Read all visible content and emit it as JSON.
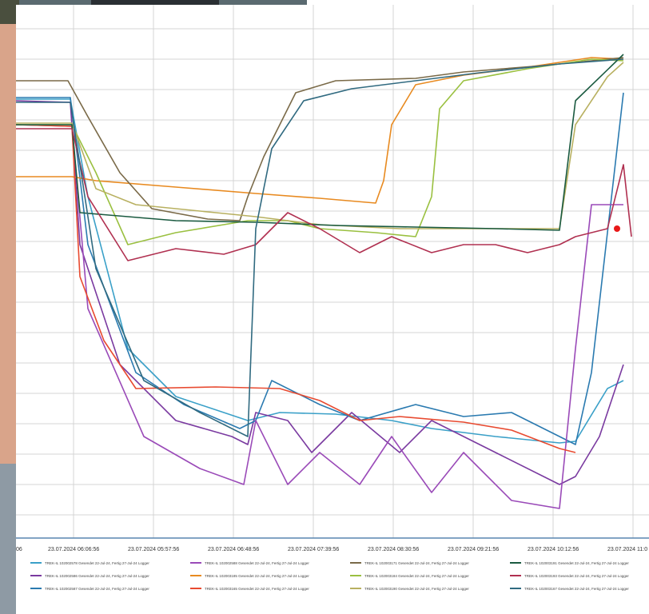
{
  "chart_data": {
    "type": "line",
    "title": "",
    "xlabel": "",
    "ylabel": "",
    "x_ticks": [
      "06",
      "23.07.2024 06:06:56",
      "23.07.2024 05:57:56",
      "23.07.2024 06:48:56",
      "23.07.2024 07:39:56",
      "23.07.2024 08:30:56",
      "23.07.2024 09:21:56",
      "23.07.2024 10:12:56",
      "23.07.2024 11:0"
    ],
    "grid": true,
    "legend_position": "bottom",
    "series": [
      {
        "name": "TREK-IL 102002578 Gesendet 22-Jul-24, Fertig 27-Jul-24 Logger",
        "color": "#3aa0c8",
        "values": [
          [
            0,
            118
          ],
          [
            68,
            118
          ],
          [
            90,
            240
          ],
          [
            140,
            430
          ],
          [
            200,
            490
          ],
          [
            290,
            520
          ],
          [
            330,
            510
          ],
          [
            400,
            512
          ],
          [
            470,
            520
          ],
          [
            520,
            530
          ],
          [
            600,
            540
          ],
          [
            680,
            548
          ],
          [
            700,
            546
          ],
          [
            740,
            480
          ],
          [
            760,
            470
          ]
        ]
      },
      {
        "name": "TREK-IL 102002586 Gesendet 22-Jul-24, Fertig 27-Jul-24 Logger",
        "color": "#7a3aa0",
        "values": [
          [
            0,
            120
          ],
          [
            68,
            122
          ],
          [
            80,
            300
          ],
          [
            130,
            450
          ],
          [
            200,
            520
          ],
          [
            270,
            540
          ],
          [
            290,
            550
          ],
          [
            300,
            510
          ],
          [
            340,
            520
          ],
          [
            370,
            560
          ],
          [
            420,
            510
          ],
          [
            480,
            560
          ],
          [
            520,
            520
          ],
          [
            600,
            560
          ],
          [
            680,
            600
          ],
          [
            700,
            590
          ],
          [
            730,
            540
          ],
          [
            760,
            450
          ]
        ]
      },
      {
        "name": "TREK-IL 102002587 Gesendet 22-Jul-24, Fertig 27-Jul-24 Logger",
        "color": "#2a7ab0",
        "values": [
          [
            0,
            116
          ],
          [
            68,
            116
          ],
          [
            90,
            300
          ],
          [
            150,
            460
          ],
          [
            210,
            500
          ],
          [
            280,
            530
          ],
          [
            300,
            520
          ],
          [
            320,
            470
          ],
          [
            380,
            500
          ],
          [
            430,
            520
          ],
          [
            500,
            500
          ],
          [
            560,
            515
          ],
          [
            620,
            510
          ],
          [
            680,
            540
          ],
          [
            700,
            550
          ],
          [
            720,
            460
          ],
          [
            760,
            110
          ]
        ]
      },
      {
        "name": "TREK-IL 102002588 Gesendet 22-Jul-24, Fertig 27-Jul-24 Logger",
        "color": "#9a4ab8",
        "values": [
          [
            0,
            150
          ],
          [
            70,
            152
          ],
          [
            90,
            380
          ],
          [
            160,
            540
          ],
          [
            230,
            580
          ],
          [
            285,
            600
          ],
          [
            300,
            520
          ],
          [
            340,
            600
          ],
          [
            380,
            560
          ],
          [
            430,
            600
          ],
          [
            470,
            540
          ],
          [
            520,
            610
          ],
          [
            560,
            560
          ],
          [
            620,
            620
          ],
          [
            680,
            630
          ],
          [
            700,
            430
          ],
          [
            720,
            250
          ],
          [
            760,
            250
          ]
        ]
      },
      {
        "name": "TREK-IL 102003185 Gesendet 22-Jul-24, Fertig 27-Jul-24 Logger",
        "color": "#e88a20",
        "values": [
          [
            0,
            215
          ],
          [
            70,
            215
          ],
          [
            100,
            220
          ],
          [
            200,
            228
          ],
          [
            300,
            236
          ],
          [
            380,
            242
          ],
          [
            450,
            248
          ],
          [
            460,
            220
          ],
          [
            470,
            150
          ],
          [
            500,
            100
          ],
          [
            560,
            88
          ],
          [
            640,
            78
          ],
          [
            720,
            66
          ],
          [
            760,
            68
          ]
        ]
      },
      {
        "name": "TREK-IL 102003165 Gesendet 22-Jul-24, Fertig 27-Jul-24 Logger",
        "color": "#e84a30",
        "values": [
          [
            0,
            150
          ],
          [
            70,
            152
          ],
          [
            80,
            340
          ],
          [
            110,
            420
          ],
          [
            150,
            480
          ],
          [
            250,
            478
          ],
          [
            330,
            480
          ],
          [
            380,
            495
          ],
          [
            430,
            520
          ],
          [
            480,
            515
          ],
          [
            560,
            522
          ],
          [
            620,
            532
          ],
          [
            680,
            555
          ],
          [
            700,
            560
          ]
        ]
      },
      {
        "name": "TREK-IL 102003171 Gesendet 22-Jul-24, Fertig 27-Jul-24 Logger",
        "color": "#7a6a48",
        "values": [
          [
            0,
            95
          ],
          [
            65,
            95
          ],
          [
            90,
            140
          ],
          [
            130,
            210
          ],
          [
            170,
            255
          ],
          [
            240,
            268
          ],
          [
            280,
            270
          ],
          [
            290,
            240
          ],
          [
            310,
            190
          ],
          [
            350,
            110
          ],
          [
            400,
            95
          ],
          [
            500,
            92
          ],
          [
            560,
            84
          ],
          [
            660,
            76
          ],
          [
            720,
            70
          ],
          [
            760,
            66
          ]
        ]
      },
      {
        "name": "TREK-IL 102003184 Gesendet 22-Jul-24, Fertig 27-Jul-24 Logger",
        "color": "#9ac040",
        "values": [
          [
            0,
            150
          ],
          [
            70,
            150
          ],
          [
            100,
            210
          ],
          [
            140,
            300
          ],
          [
            200,
            285
          ],
          [
            290,
            270
          ],
          [
            340,
            270
          ],
          [
            380,
            280
          ],
          [
            450,
            285
          ],
          [
            500,
            290
          ],
          [
            520,
            240
          ],
          [
            530,
            130
          ],
          [
            560,
            95
          ],
          [
            640,
            80
          ],
          [
            720,
            68
          ],
          [
            760,
            70
          ]
        ]
      },
      {
        "name": "TREK-IL 102003190 Gesendet 22-Jul-24, Fertig 27-Jul-24 Logger",
        "color": "#b8b060",
        "values": [
          [
            0,
            148
          ],
          [
            70,
            148
          ],
          [
            100,
            230
          ],
          [
            150,
            250
          ],
          [
            250,
            260
          ],
          [
            300,
            265
          ],
          [
            380,
            275
          ],
          [
            480,
            280
          ],
          [
            600,
            280
          ],
          [
            680,
            280
          ],
          [
            700,
            150
          ],
          [
            740,
            90
          ],
          [
            760,
            72
          ]
        ]
      },
      {
        "name": "TREK-IL 102003191 Gesendet 22-Jul-24, Fertig 27-Jul-24 Logger",
        "color": "#1a5a40",
        "values": [
          [
            0,
            150
          ],
          [
            70,
            150
          ],
          [
            80,
            260
          ],
          [
            200,
            270
          ],
          [
            300,
            272
          ],
          [
            400,
            276
          ],
          [
            500,
            278
          ],
          [
            600,
            280
          ],
          [
            680,
            282
          ],
          [
            700,
            120
          ],
          [
            760,
            62
          ]
        ]
      },
      {
        "name": "TREK-IL 102003193 Gesendet 22-Jul-24, Fertig 27-Jul-24 Logger",
        "color": "#b03050",
        "values": [
          [
            0,
            155
          ],
          [
            70,
            155
          ],
          [
            90,
            240
          ],
          [
            140,
            320
          ],
          [
            200,
            305
          ],
          [
            260,
            312
          ],
          [
            300,
            300
          ],
          [
            340,
            260
          ],
          [
            380,
            280
          ],
          [
            430,
            310
          ],
          [
            470,
            290
          ],
          [
            520,
            310
          ],
          [
            560,
            300
          ],
          [
            600,
            300
          ],
          [
            640,
            310
          ],
          [
            680,
            300
          ],
          [
            700,
            290
          ],
          [
            740,
            280
          ],
          [
            760,
            200
          ],
          [
            770,
            290
          ]
        ]
      },
      {
        "name": "TREK-IL 102003167 Gesendet 22-Jul-24, Fertig 27-Jul-24 Logger",
        "color": "#306a80",
        "values": [
          [
            0,
            122
          ],
          [
            68,
            122
          ],
          [
            100,
            330
          ],
          [
            160,
            470
          ],
          [
            230,
            510
          ],
          [
            290,
            540
          ],
          [
            300,
            280
          ],
          [
            320,
            180
          ],
          [
            360,
            120
          ],
          [
            420,
            105
          ],
          [
            500,
            95
          ],
          [
            580,
            85
          ],
          [
            680,
            74
          ],
          [
            760,
            68
          ]
        ]
      }
    ]
  }
}
